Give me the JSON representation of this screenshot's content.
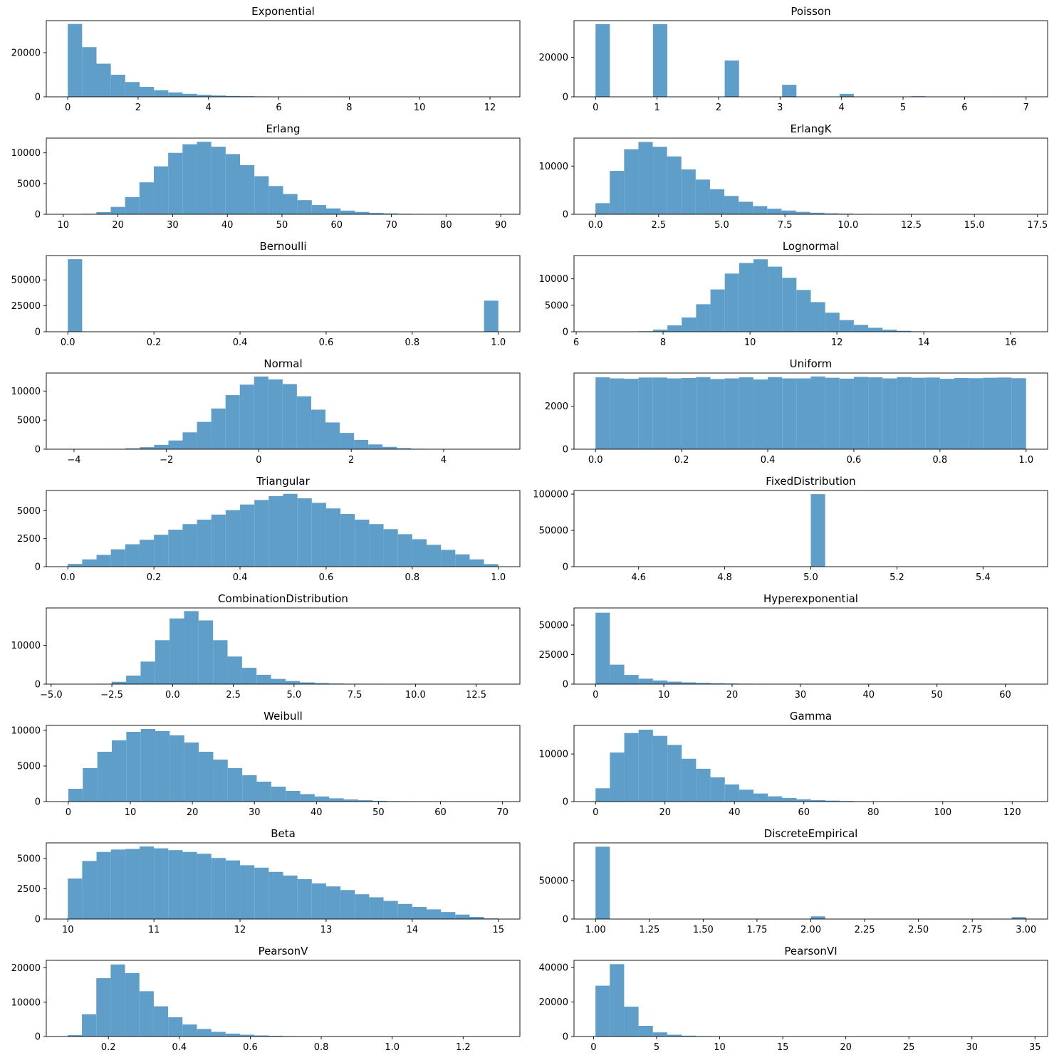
{
  "chart_data": [
    {
      "type": "bar",
      "title": "Exponential",
      "xlim": [
        -0.61,
        12.85
      ],
      "ylim": [
        0,
        34500
      ],
      "xticks": [
        0,
        2,
        4,
        6,
        8,
        10,
        12
      ],
      "yticks": [
        0,
        20000
      ],
      "bins_start": 0,
      "bins_end": 12.25,
      "values": [
        33000,
        22500,
        15000,
        10000,
        6700,
        4500,
        3000,
        2000,
        1350,
        900,
        600,
        400,
        270,
        180,
        120,
        80,
        55,
        35,
        24,
        16,
        11,
        7,
        5,
        3,
        2,
        1,
        1,
        1,
        0,
        1
      ],
      "color": "#5f9ec9"
    },
    {
      "type": "bar",
      "title": "Poisson",
      "xlim": [
        -0.35,
        7.35
      ],
      "ylim": [
        0,
        38600
      ],
      "xticks": [
        0,
        1,
        2,
        3,
        4,
        5,
        6,
        7
      ],
      "yticks": [
        0,
        20000
      ],
      "bins_start": 0,
      "bins_end": 7,
      "values": [
        36800,
        0,
        0,
        0,
        36800,
        0,
        0,
        0,
        0,
        18400,
        0,
        0,
        0,
        6100,
        0,
        0,
        0,
        1500,
        0,
        0,
        0,
        0,
        300,
        0,
        0,
        0,
        50,
        0,
        0,
        10
      ],
      "color": "#5f9ec9"
    },
    {
      "type": "bar",
      "title": "Erlang",
      "xlim": [
        6.9,
        93.5
      ],
      "ylim": [
        0,
        12400
      ],
      "xticks": [
        10,
        20,
        30,
        40,
        50,
        60,
        70,
        80,
        90
      ],
      "yticks": [
        0,
        5000,
        10000
      ],
      "bins_start": 10.8,
      "bins_end": 89.6,
      "values": [
        20,
        80,
        350,
        1200,
        2800,
        5200,
        7800,
        10000,
        11400,
        11800,
        11000,
        9800,
        8000,
        6200,
        4600,
        3300,
        2300,
        1500,
        950,
        600,
        380,
        230,
        140,
        80,
        50,
        30,
        18,
        10,
        6,
        3
      ],
      "color": "#5f9ec9"
    },
    {
      "type": "bar",
      "title": "ErlangK",
      "xlim": [
        -0.85,
        17.9
      ],
      "ylim": [
        0,
        15800
      ],
      "xticks": [
        0.0,
        2.5,
        5.0,
        7.5,
        10.0,
        12.5,
        15.0,
        17.5
      ],
      "xtick_labels": [
        "0.0",
        "2.5",
        "5.0",
        "7.5",
        "10.0",
        "12.5",
        "15.0",
        "17.5"
      ],
      "yticks": [
        0,
        10000
      ],
      "bins_start": 0,
      "bins_end": 17,
      "values": [
        2300,
        9000,
        13500,
        15000,
        14000,
        12000,
        9300,
        7200,
        5200,
        3800,
        2600,
        1700,
        1150,
        780,
        500,
        320,
        200,
        130,
        80,
        50,
        30,
        18,
        11,
        7,
        4,
        3,
        2,
        1,
        1,
        1
      ],
      "color": "#5f9ec9"
    },
    {
      "type": "bar",
      "title": "Bernoulli",
      "xlim": [
        -0.05,
        1.05
      ],
      "ylim": [
        0,
        73500
      ],
      "xticks": [
        0.0,
        0.2,
        0.4,
        0.6,
        0.8,
        1.0
      ],
      "xtick_labels": [
        "0.0",
        "0.2",
        "0.4",
        "0.6",
        "0.8",
        "1.0"
      ],
      "yticks": [
        0,
        25000,
        50000
      ],
      "bins_start": 0,
      "bins_end": 1,
      "values": [
        70000,
        0,
        0,
        0,
        0,
        0,
        0,
        0,
        0,
        0,
        0,
        0,
        0,
        0,
        0,
        0,
        0,
        0,
        0,
        0,
        0,
        0,
        0,
        0,
        0,
        0,
        0,
        0,
        0,
        30000
      ],
      "color": "#5f9ec9"
    },
    {
      "type": "bar",
      "title": "Lognormal",
      "xlim": [
        5.95,
        16.85
      ],
      "ylim": [
        0,
        14400
      ],
      "xticks": [
        6,
        8,
        10,
        12,
        14,
        16
      ],
      "yticks": [
        0,
        5000,
        10000
      ],
      "bins_start": 6.45,
      "bins_end": 16.35,
      "values": [
        2,
        8,
        30,
        100,
        400,
        1200,
        2700,
        5200,
        8000,
        11000,
        13000,
        13700,
        12300,
        10200,
        7900,
        5600,
        3600,
        2200,
        1300,
        750,
        380,
        180,
        80,
        35,
        14,
        6,
        3,
        2,
        1,
        1
      ],
      "color": "#5f9ec9"
    },
    {
      "type": "bar",
      "title": "Normal",
      "xlim": [
        -4.6,
        5.65
      ],
      "ylim": [
        0,
        13100
      ],
      "xticks": [
        -4,
        -2,
        0,
        2,
        4
      ],
      "xtick_labels": [
        "−4",
        "−2",
        "0",
        "2",
        "4"
      ],
      "yticks": [
        0,
        5000,
        10000
      ],
      "bins_start": -4.12,
      "bins_end": 5.15,
      "values": [
        2,
        6,
        20,
        60,
        150,
        350,
        750,
        1500,
        2900,
        4700,
        7000,
        9300,
        11100,
        12500,
        12000,
        11200,
        9100,
        6800,
        4600,
        2800,
        1600,
        820,
        400,
        180,
        75,
        30,
        10,
        4,
        2,
        1
      ],
      "color": "#5f9ec9"
    },
    {
      "type": "bar",
      "title": "Uniform",
      "xlim": [
        -0.05,
        1.05
      ],
      "ylim": [
        0,
        3550
      ],
      "xticks": [
        0.0,
        0.2,
        0.4,
        0.6,
        0.8,
        1.0
      ],
      "xtick_labels": [
        "0.0",
        "0.2",
        "0.4",
        "0.6",
        "0.8",
        "1.0"
      ],
      "yticks": [
        0,
        2000
      ],
      "bins_start": 0,
      "bins_end": 1,
      "values": [
        3350,
        3300,
        3280,
        3340,
        3340,
        3300,
        3320,
        3360,
        3270,
        3300,
        3350,
        3250,
        3360,
        3300,
        3300,
        3390,
        3330,
        3290,
        3370,
        3350,
        3300,
        3360,
        3330,
        3340,
        3280,
        3320,
        3310,
        3330,
        3340,
        3310
      ],
      "color": "#5f9ec9"
    },
    {
      "type": "bar",
      "title": "Triangular",
      "xlim": [
        -0.05,
        1.05
      ],
      "ylim": [
        0,
        6800
      ],
      "xticks": [
        0.0,
        0.2,
        0.4,
        0.6,
        0.8,
        1.0
      ],
      "xtick_labels": [
        "0.0",
        "0.2",
        "0.4",
        "0.6",
        "0.8",
        "1.0"
      ],
      "yticks": [
        0,
        2500,
        5000
      ],
      "bins_start": 0,
      "bins_end": 1,
      "values": [
        250,
        650,
        1050,
        1550,
        2000,
        2400,
        2850,
        3300,
        3800,
        4200,
        4650,
        5050,
        5550,
        5950,
        6300,
        6500,
        6100,
        5700,
        5200,
        4700,
        4200,
        3800,
        3350,
        2900,
        2450,
        1950,
        1500,
        1100,
        650,
        230
      ],
      "color": "#5f9ec9"
    },
    {
      "type": "bar",
      "title": "FixedDistribution",
      "xlim": [
        4.45,
        5.55
      ],
      "ylim": [
        0,
        105000
      ],
      "xticks": [
        4.6,
        4.8,
        5.0,
        5.2,
        5.4
      ],
      "xtick_labels": [
        "4.6",
        "4.8",
        "5.0",
        "5.2",
        "5.4"
      ],
      "yticks": [
        0,
        50000,
        100000
      ],
      "bins_start": 4.5,
      "bins_end": 5.5,
      "values": [
        0,
        0,
        0,
        0,
        0,
        0,
        0,
        0,
        0,
        0,
        0,
        0,
        0,
        0,
        0,
        100000,
        0,
        0,
        0,
        0,
        0,
        0,
        0,
        0,
        0,
        0,
        0,
        0,
        0,
        0
      ],
      "color": "#5f9ec9"
    },
    {
      "type": "bar",
      "title": "CombinationDistribution",
      "xlim": [
        -5.2,
        14.3
      ],
      "ylim": [
        0,
        19600
      ],
      "xticks": [
        -5.0,
        -2.5,
        0.0,
        2.5,
        5.0,
        7.5,
        10.0,
        12.5
      ],
      "xtick_labels": [
        "−5.0",
        "−2.5",
        "0.0",
        "2.5",
        "5.0",
        "7.5",
        "10.0",
        "12.5"
      ],
      "yticks": [
        0,
        10000
      ],
      "bins_start": -4.3,
      "bins_end": 13.6,
      "values": [
        5,
        20,
        80,
        600,
        2200,
        5800,
        11300,
        16900,
        18800,
        16400,
        11300,
        7100,
        4200,
        2400,
        1350,
        800,
        450,
        260,
        150,
        90,
        50,
        30,
        18,
        10,
        6,
        4,
        2,
        1,
        1,
        1
      ],
      "color": "#5f9ec9"
    },
    {
      "type": "bar",
      "title": "Hyperexponential",
      "xlim": [
        -3.15,
        66.2
      ],
      "ylim": [
        0,
        64500
      ],
      "xticks": [
        0,
        10,
        20,
        30,
        40,
        50,
        60
      ],
      "yticks": [
        0,
        25000,
        50000
      ],
      "bins_start": 0,
      "bins_end": 63.1,
      "values": [
        60500,
        16500,
        7800,
        4600,
        3100,
        2100,
        1500,
        1050,
        720,
        500,
        350,
        240,
        170,
        120,
        80,
        55,
        40,
        28,
        20,
        14,
        10,
        7,
        5,
        3,
        2,
        2,
        1,
        1,
        1,
        1
      ],
      "color": "#5f9ec9"
    },
    {
      "type": "bar",
      "title": "Weibull",
      "xlim": [
        -3.55,
        72.8
      ],
      "ylim": [
        0,
        10700
      ],
      "xticks": [
        0,
        10,
        20,
        30,
        40,
        50,
        60,
        70
      ],
      "yticks": [
        0,
        5000,
        10000
      ],
      "bins_start": 0,
      "bins_end": 70.1,
      "values": [
        1800,
        4700,
        7000,
        8600,
        9800,
        10200,
        9900,
        9300,
        8300,
        7000,
        5900,
        4700,
        3700,
        2800,
        2100,
        1500,
        1050,
        720,
        460,
        300,
        190,
        110,
        65,
        38,
        20,
        11,
        6,
        3,
        2,
        1
      ],
      "color": "#5f9ec9"
    },
    {
      "type": "bar",
      "title": "Gamma",
      "xlim": [
        -6.2,
        130.2
      ],
      "ylim": [
        0,
        16000
      ],
      "xticks": [
        0,
        20,
        40,
        60,
        80,
        100,
        120
      ],
      "yticks": [
        0,
        10000
      ],
      "bins_start": 0,
      "bins_end": 124.1,
      "values": [
        2800,
        10300,
        14400,
        15100,
        13800,
        11900,
        9000,
        6900,
        5100,
        3600,
        2500,
        1700,
        1100,
        760,
        480,
        310,
        200,
        130,
        80,
        50,
        32,
        20,
        12,
        8,
        5,
        3,
        2,
        1,
        1,
        1
      ],
      "color": "#5f9ec9"
    },
    {
      "type": "bar",
      "title": "Beta",
      "xlim": [
        9.75,
        15.25
      ],
      "ylim": [
        0,
        6300
      ],
      "xticks": [
        10,
        11,
        12,
        13,
        14,
        15
      ],
      "yticks": [
        0,
        2500,
        5000
      ],
      "bins_start": 10,
      "bins_end": 15,
      "values": [
        3350,
        4800,
        5550,
        5750,
        5800,
        6000,
        5850,
        5700,
        5550,
        5400,
        5050,
        4850,
        4450,
        4250,
        3900,
        3600,
        3300,
        2950,
        2700,
        2400,
        2050,
        1800,
        1500,
        1250,
        1000,
        800,
        580,
        370,
        180,
        50
      ],
      "color": "#5f9ec9"
    },
    {
      "type": "bar",
      "title": "DiscreteEmpirical",
      "xlim": [
        0.9,
        3.1
      ],
      "ylim": [
        0,
        99000
      ],
      "xticks": [
        1.0,
        1.25,
        1.5,
        1.75,
        2.0,
        2.25,
        2.5,
        2.75,
        3.0
      ],
      "xtick_labels": [
        "1.00",
        "1.25",
        "1.50",
        "1.75",
        "2.00",
        "2.25",
        "2.50",
        "2.75",
        "3.00"
      ],
      "yticks": [
        0,
        50000
      ],
      "bins_start": 1,
      "bins_end": 3,
      "values": [
        94000,
        0,
        0,
        0,
        0,
        0,
        0,
        0,
        0,
        0,
        0,
        0,
        0,
        0,
        0,
        3500,
        0,
        0,
        0,
        0,
        0,
        0,
        0,
        0,
        0,
        0,
        0,
        0,
        0,
        2500
      ],
      "color": "#5f9ec9"
    },
    {
      "type": "bar",
      "title": "PearsonV",
      "xlim": [
        0.025,
        1.36
      ],
      "ylim": [
        0,
        22200
      ],
      "xticks": [
        0.2,
        0.4,
        0.6,
        0.8,
        1.0,
        1.2
      ],
      "xtick_labels": [
        "0.2",
        "0.4",
        "0.6",
        "0.8",
        "1.0",
        "1.2"
      ],
      "yticks": [
        0,
        10000,
        20000
      ],
      "bins_start": 0.085,
      "bins_end": 1.3,
      "values": [
        400,
        6500,
        17000,
        21000,
        18500,
        13200,
        8800,
        5600,
        3500,
        2200,
        1350,
        850,
        520,
        320,
        200,
        120,
        75,
        45,
        28,
        17,
        10,
        6,
        4,
        3,
        2,
        1,
        1,
        1,
        1,
        1
      ],
      "color": "#5f9ec9"
    },
    {
      "type": "bar",
      "title": "PearsonVI",
      "xlim": [
        -1.55,
        36.0
      ],
      "ylim": [
        0,
        44200
      ],
      "xticks": [
        0,
        5,
        10,
        15,
        20,
        25,
        30,
        35
      ],
      "yticks": [
        0,
        20000,
        40000
      ],
      "bins_start": 0.15,
      "bins_end": 34.3,
      "values": [
        29500,
        42000,
        17300,
        6200,
        2400,
        1050,
        500,
        250,
        130,
        70,
        40,
        25,
        15,
        10,
        7,
        5,
        3,
        2,
        2,
        1,
        1,
        1,
        1,
        1,
        1,
        1,
        1,
        1,
        1,
        1
      ],
      "color": "#5f9ec9"
    }
  ]
}
